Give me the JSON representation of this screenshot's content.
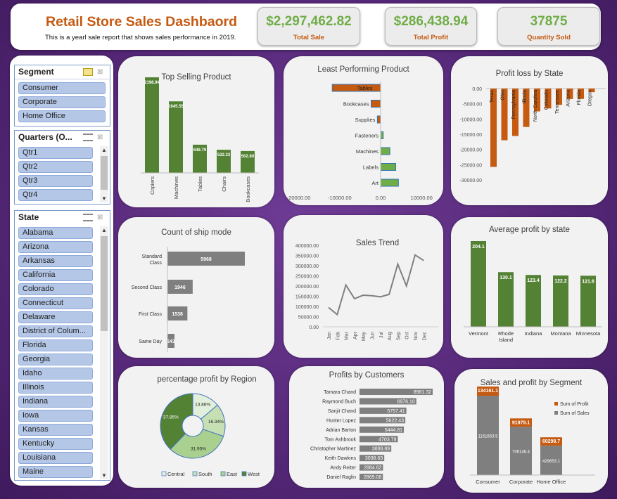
{
  "header": {
    "title": "Retail Store Sales Dashbaord",
    "subtitle": "This is a yearl sale report that shows sales performance in 2019."
  },
  "kpis": [
    {
      "value": "$2,297,462.82",
      "label": "Total Sale"
    },
    {
      "value": "$286,438.94",
      "label": "Total Profit"
    },
    {
      "value": "37875",
      "label": "Quantity Sold"
    }
  ],
  "slicers": {
    "segment": {
      "title": "Segment",
      "items": [
        "Consumer",
        "Corporate",
        "Home Office"
      ]
    },
    "quarters": {
      "title": "Quarters (O...",
      "items": [
        "Qtr1",
        "Qtr2",
        "Qtr3",
        "Qtr4"
      ]
    },
    "state": {
      "title": "State",
      "items": [
        "Alabama",
        "Arizona",
        "Arkansas",
        "California",
        "Colorado",
        "Connecticut",
        "Delaware",
        "District of Colum...",
        "Florida",
        "Georgia",
        "Idaho",
        "Illinois",
        "Indiana",
        "Iowa",
        "Kansas",
        "Kentucky",
        "Louisiana",
        "Maine"
      ]
    }
  },
  "colors": {
    "green": "#548235",
    "orange": "#c55a11",
    "gray": "#7f7f7f",
    "lightgreen": "#70ad47",
    "background": "#5b2d7e"
  },
  "charts": {
    "top_selling": {
      "title": "Top Selling Product"
    },
    "least_performing": {
      "title": "Least Performing Product",
      "ticks": [
        "-20000.00",
        "-10000.00",
        "0.00",
        "10000.00"
      ]
    },
    "profit_loss_state": {
      "title": "Profit loss by State",
      "ticks": [
        "0.00",
        "-5000.00",
        "-10000.00",
        "-15000.00",
        "-20000.00",
        "-25000.00",
        "-30000.00"
      ]
    },
    "ship_mode": {
      "title": "Count of ship mode"
    },
    "sales_trend": {
      "title": "Sales Trend",
      "ticks": [
        "400000.00",
        "350000.00",
        "300000.00",
        "250000.00",
        "200000.00",
        "150000.00",
        "100000.00",
        "50000.00",
        "0.00"
      ]
    },
    "avg_profit_state": {
      "title": "Average profit by state"
    },
    "region_profit": {
      "title": "percentage profit by Region"
    },
    "customers": {
      "title": "Profits  by Customers"
    },
    "segment_sp": {
      "title": "Sales and profit by Segment",
      "legend": [
        "Sum of Profit",
        "Sum of Sales"
      ]
    }
  },
  "chart_data": [
    {
      "id": "top_selling",
      "type": "bar",
      "title": "Top Selling Product",
      "categories": [
        "Copiers",
        "Machines",
        "Tables",
        "Chairs",
        "Bookcases"
      ],
      "values": [
        2198.94,
        1645.55,
        648.79,
        532.33,
        502.8
      ],
      "labels": [
        "2198.94",
        "1645.55",
        "648.79",
        "532.33",
        "502.80"
      ]
    },
    {
      "id": "least_performing",
      "type": "bar",
      "orientation": "horizontal",
      "title": "Least Performing Product",
      "categories": [
        "Tables",
        "Bookcases",
        "Supplies",
        "Fasteners",
        "Machines",
        "Labels",
        "Art"
      ],
      "values": [
        -17725,
        -3473,
        -1189,
        950,
        3385,
        5546,
        6528
      ],
      "xlim": [
        -25000,
        15000
      ]
    },
    {
      "id": "profit_loss_state",
      "type": "bar",
      "title": "Profit loss by State",
      "categories": [
        "Texas",
        "Ohio",
        "Pennsylvania",
        "Illinois",
        "North Carolina",
        "Colorado",
        "Tennessee",
        "Arizona",
        "Florida",
        "Oregon"
      ],
      "values": [
        -25729,
        -16971,
        -15560,
        -12608,
        -7490,
        -6528,
        -5342,
        -3428,
        -3399,
        -1190
      ],
      "ylim": [
        -30000,
        0
      ]
    },
    {
      "id": "ship_mode",
      "type": "bar",
      "orientation": "horizontal",
      "title": "Count of ship mode",
      "categories": [
        "Standard Class",
        "Second Class",
        "First Class",
        "Same Day"
      ],
      "values": [
        5968,
        1946,
        1538,
        543
      ],
      "labels": [
        "5968",
        "1946",
        "1538",
        "543"
      ]
    },
    {
      "id": "sales_trend",
      "type": "line",
      "title": "Sales Trend",
      "categories": [
        "Jan",
        "Feb",
        "Mar",
        "Apr",
        "May",
        "Jun",
        "Jul",
        "Aug",
        "Sep",
        "Oct",
        "Nov",
        "Dec"
      ],
      "values": [
        94925,
        59751,
        205005,
        137762,
        155028,
        152718,
        147238,
        159044,
        307649,
        200322,
        352461,
        325293
      ],
      "ylim": [
        0,
        400000
      ]
    },
    {
      "id": "avg_profit_state",
      "type": "bar",
      "title": "Average profit by state",
      "categories": [
        "Vermont",
        "Rhode Island",
        "Indiana",
        "Montana",
        "Minnesota"
      ],
      "values": [
        204.1,
        130.1,
        123.4,
        122.2,
        121.6
      ],
      "labels": [
        "204.1",
        "130.1",
        "123.4",
        "122.2",
        "121.6"
      ]
    },
    {
      "id": "region_profit",
      "type": "pie",
      "donut": true,
      "title": "percentage profit by Region",
      "categories": [
        "Central",
        "South",
        "East",
        "West"
      ],
      "values": [
        13.86,
        16.34,
        31.95,
        37.85
      ],
      "labels": [
        "13.86%",
        "16.34%",
        "31.95%",
        "37.85%"
      ]
    },
    {
      "id": "customers",
      "type": "bar",
      "orientation": "horizontal",
      "title": "Profits  by Customers",
      "categories": [
        "Tamara Chand",
        "Raymond Buch",
        "Sanjit Chand",
        "Hunter Lopez",
        "Adrian Barton",
        "Tom Ashbrook",
        "Christopher Martinez",
        "Keith Dawkins",
        "Andy Reiter",
        "Daniel Raglin"
      ],
      "values": [
        8981.32,
        6976.1,
        5757.41,
        5622.43,
        5444.81,
        4703.79,
        3899.89,
        3038.63,
        2884.62,
        2869.08
      ],
      "labels": [
        "8981.32",
        "6976.10",
        "5757.41",
        "5622.43",
        "5444.81",
        "4703.79",
        "3899.89",
        "3038.63",
        "2884.62",
        "2869.08"
      ]
    },
    {
      "id": "segment_sp",
      "type": "bar",
      "stacked": true,
      "title": "Sales and profit by Segment",
      "categories": [
        "Consumer",
        "Corporate",
        "Home Office"
      ],
      "series": [
        {
          "name": "Sum of Sales",
          "values": [
            1161663.5,
            706146.4,
            429653.1
          ]
        },
        {
          "name": "Sum of Profit",
          "values": [
            134161.1,
            91979.1,
            60298.7
          ]
        }
      ],
      "labels": {
        "sales": [
          "1161663.5",
          "706146.4",
          "429653.1"
        ],
        "profit": [
          "134161.1",
          "91979.1",
          "60298.7"
        ]
      }
    }
  ]
}
